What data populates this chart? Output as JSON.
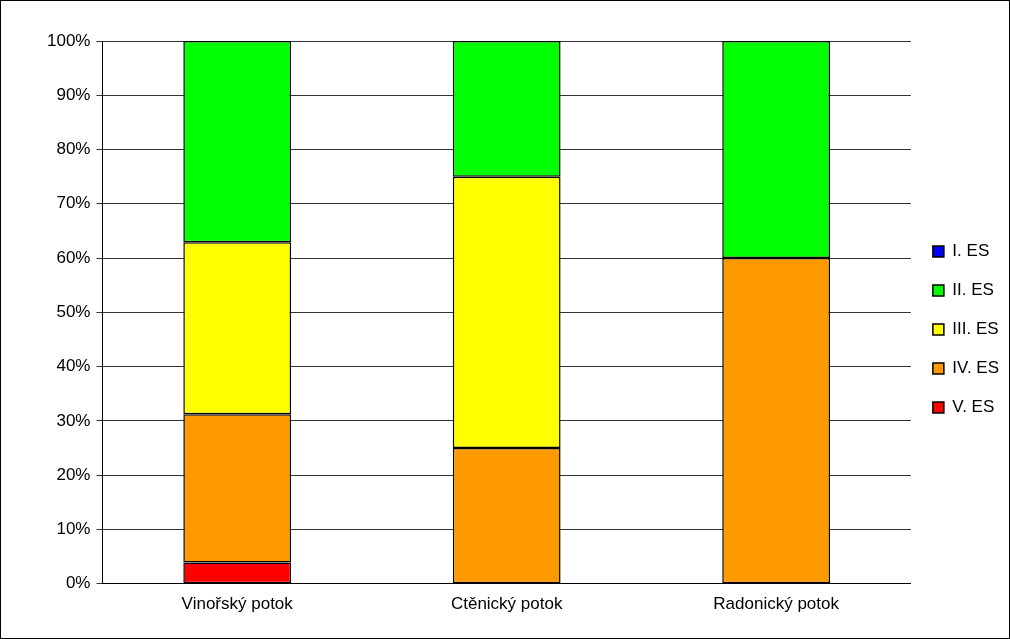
{
  "chart_data": {
    "type": "bar",
    "stacked": true,
    "categories": [
      "Vinořský potok",
      "Ctěnický potok",
      "Radonický potok"
    ],
    "series": [
      {
        "name": "V. ES",
        "color": "#ff0000",
        "values": [
          3.9,
          0,
          0
        ]
      },
      {
        "name": "IV. ES",
        "color": "#ff9900",
        "values": [
          27.3,
          25,
          60
        ]
      },
      {
        "name": "III. ES",
        "color": "#ffff00",
        "values": [
          31.7,
          50,
          0
        ]
      },
      {
        "name": "II. ES",
        "color": "#00ff00",
        "values": [
          37.1,
          25,
          40
        ]
      },
      {
        "name": "I. ES",
        "color": "#0000ff",
        "values": [
          0,
          0,
          0
        ]
      }
    ],
    "ylim": [
      0,
      100
    ],
    "yticks": [
      {
        "value": 0,
        "label": "0%"
      },
      {
        "value": 10,
        "label": "10%"
      },
      {
        "value": 20,
        "label": "20%"
      },
      {
        "value": 30,
        "label": "30%"
      },
      {
        "value": 40,
        "label": "40%"
      },
      {
        "value": 50,
        "label": "50%"
      },
      {
        "value": 60,
        "label": "60%"
      },
      {
        "value": 70,
        "label": "70%"
      },
      {
        "value": 80,
        "label": "80%"
      },
      {
        "value": 90,
        "label": "90%"
      },
      {
        "value": 100,
        "label": "100%"
      }
    ],
    "grid": "y",
    "legend": "right"
  }
}
